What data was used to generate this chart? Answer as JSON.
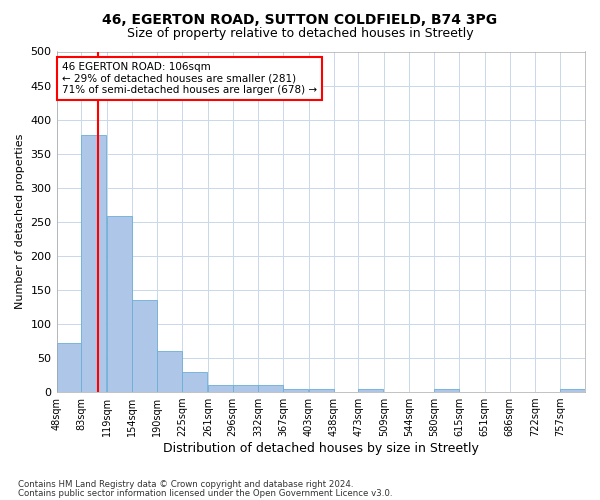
{
  "title1": "46, EGERTON ROAD, SUTTON COLDFIELD, B74 3PG",
  "title2": "Size of property relative to detached houses in Streetly",
  "xlabel": "Distribution of detached houses by size in Streetly",
  "ylabel": "Number of detached properties",
  "annotation_line1": "46 EGERTON ROAD: 106sqm",
  "annotation_line2": "← 29% of detached houses are smaller (281)",
  "annotation_line3": "71% of semi-detached houses are larger (678) →",
  "footer1": "Contains HM Land Registry data © Crown copyright and database right 2024.",
  "footer2": "Contains public sector information licensed under the Open Government Licence v3.0.",
  "bin_labels": [
    "48sqm",
    "83sqm",
    "119sqm",
    "154sqm",
    "190sqm",
    "225sqm",
    "261sqm",
    "296sqm",
    "332sqm",
    "367sqm",
    "403sqm",
    "438sqm",
    "473sqm",
    "509sqm",
    "544sqm",
    "580sqm",
    "615sqm",
    "651sqm",
    "686sqm",
    "722sqm",
    "757sqm"
  ],
  "bin_edges": [
    48,
    83,
    119,
    154,
    190,
    225,
    261,
    296,
    332,
    367,
    403,
    438,
    473,
    509,
    544,
    580,
    615,
    651,
    686,
    722,
    757
  ],
  "bar_heights": [
    72,
    378,
    258,
    135,
    60,
    30,
    10,
    10,
    10,
    5,
    5,
    0,
    5,
    0,
    0,
    4,
    0,
    0,
    0,
    0,
    4
  ],
  "bar_color": "#aec6e8",
  "bar_edge_color": "#6baed6",
  "red_line_x": 106,
  "ylim": [
    0,
    500
  ],
  "yticks": [
    0,
    50,
    100,
    150,
    200,
    250,
    300,
    350,
    400,
    450,
    500
  ],
  "bg_color": "white",
  "grid_color": "#c8d8ea",
  "title1_fontsize": 10,
  "title2_fontsize": 9,
  "xlabel_fontsize": 9,
  "ylabel_fontsize": 8
}
